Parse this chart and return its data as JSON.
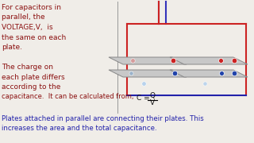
{
  "bg_color": "#f0ede8",
  "left_text_lines": [
    [
      "For capacitors in",
      "#8B1010",
      6.5
    ],
    [
      "parallel, the",
      "#8B1010",
      6.5
    ],
    [
      "VOLTAGE,V,  is",
      "#8B1010",
      6.5
    ],
    [
      "the same on each",
      "#8B1010",
      6.5
    ],
    [
      "plate.",
      "#8B1010",
      6.5
    ],
    [
      "",
      "#8B1010",
      6.5
    ],
    [
      "The charge on",
      "#8B1010",
      6.5
    ],
    [
      "each plate differs",
      "#8B1010",
      6.5
    ],
    [
      "according to the",
      "#8B1010",
      6.5
    ],
    [
      "capacitance.  It can be calculated from,",
      "#8B1010",
      6.0
    ]
  ],
  "bottom_text_line1": "Plates attached in parallel are connecting their plates. This",
  "bottom_text_line2": "increases the area and the total capacitance.",
  "bottom_text_color": "#2222aa",
  "wire_color_top": "#3333bb",
  "wire_color_red": "#cc2222",
  "wire_color_blue": "#2222aa",
  "plate_fill": "#c8c8c8",
  "plate_edge": "#888888",
  "divider_color": "#999999"
}
